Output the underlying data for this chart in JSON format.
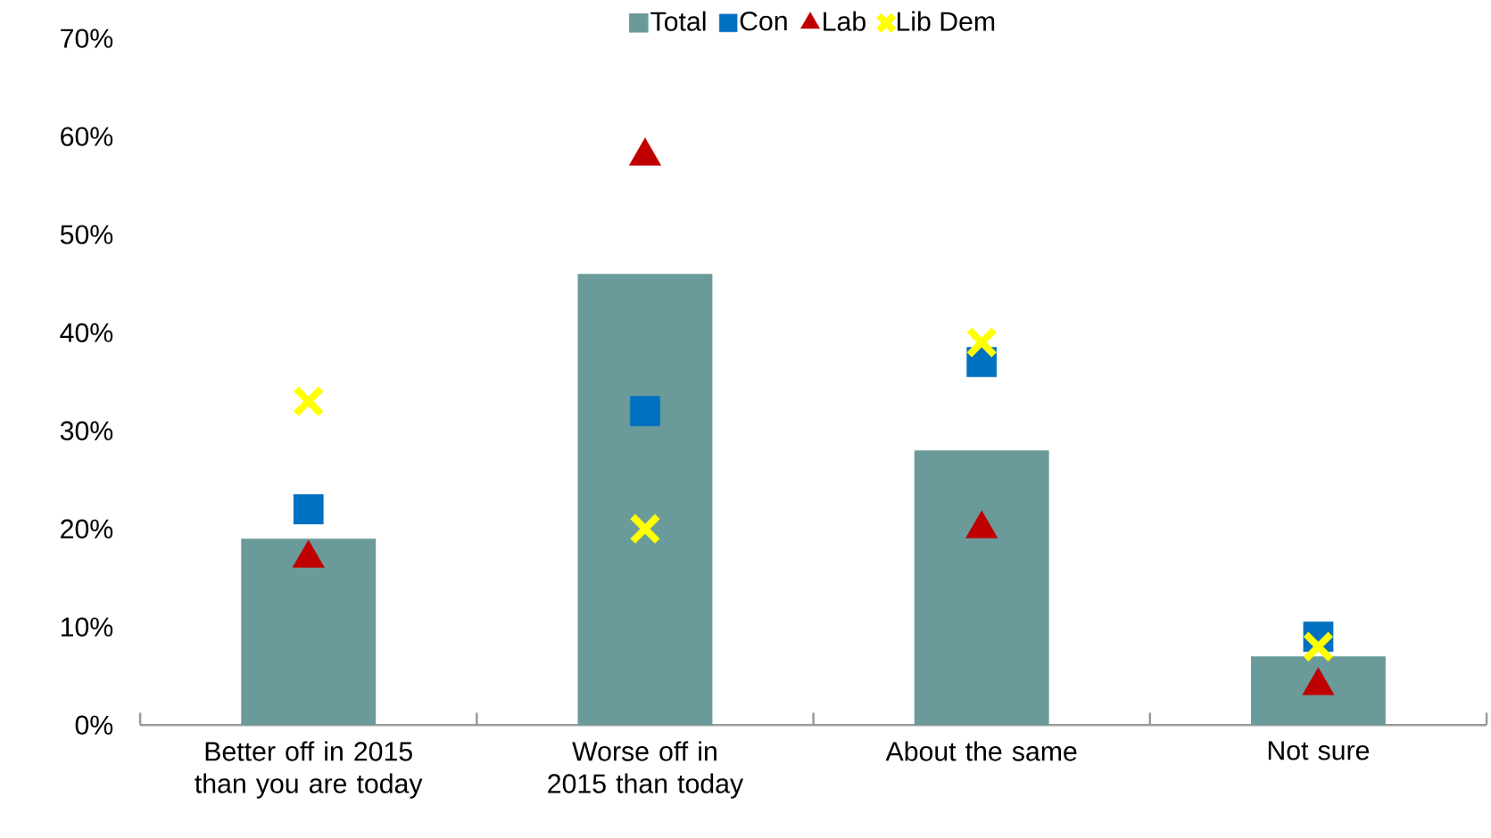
{
  "chart_data": {
    "type": "bar",
    "categories": [
      "Better off in 2015 than you are today",
      "Worse off in 2015 than today",
      "About the same",
      "Not sure"
    ],
    "series": [
      {
        "name": "Total",
        "color": "#6a9b9a",
        "values": [
          19,
          46,
          28,
          7
        ]
      },
      {
        "name": "Con",
        "type": "scatter",
        "marker": "square",
        "color": "#0070c0",
        "values": [
          22,
          32,
          37,
          9
        ]
      },
      {
        "name": "Lab",
        "type": "scatter",
        "marker": "triangle",
        "color": "#c00000",
        "values": [
          17,
          58,
          20,
          4
        ]
      },
      {
        "name": "Lib Dem",
        "type": "scatter",
        "marker": "cross",
        "color": "#ffff00",
        "values": [
          33,
          20,
          39,
          8
        ]
      }
    ],
    "ylim": [
      0,
      70
    ],
    "yticks": [
      {
        "value": 0,
        "label": "0%"
      },
      {
        "value": 10,
        "label": "10%"
      },
      {
        "value": 20,
        "label": "20%"
      },
      {
        "value": 30,
        "label": "30%"
      },
      {
        "value": 40,
        "label": "40%"
      },
      {
        "value": 50,
        "label": "50%"
      },
      {
        "value": 60,
        "label": "60%"
      },
      {
        "value": 70,
        "label": "70%"
      }
    ],
    "legend": "top"
  }
}
